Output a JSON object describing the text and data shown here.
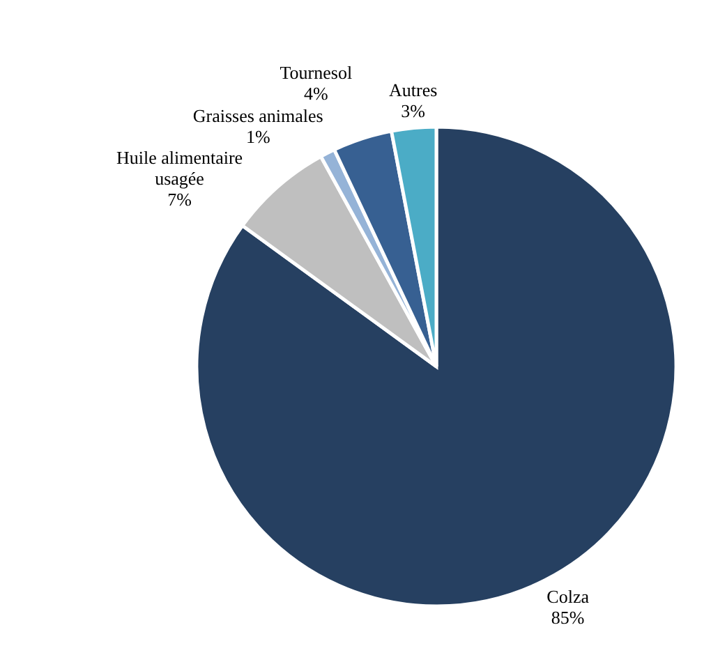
{
  "chart_data": {
    "type": "pie",
    "categories": [
      "Colza",
      "Huile alimentaire usagée",
      "Graisses animales",
      "Tournesol",
      "Autres"
    ],
    "values": [
      85,
      7,
      1,
      4,
      3
    ],
    "value_labels": [
      "85%",
      "7%",
      "1%",
      "4%",
      "3%"
    ],
    "colors": [
      "#264061",
      "#bfbfbf",
      "#95b3d7",
      "#376092",
      "#4bacc6"
    ]
  }
}
